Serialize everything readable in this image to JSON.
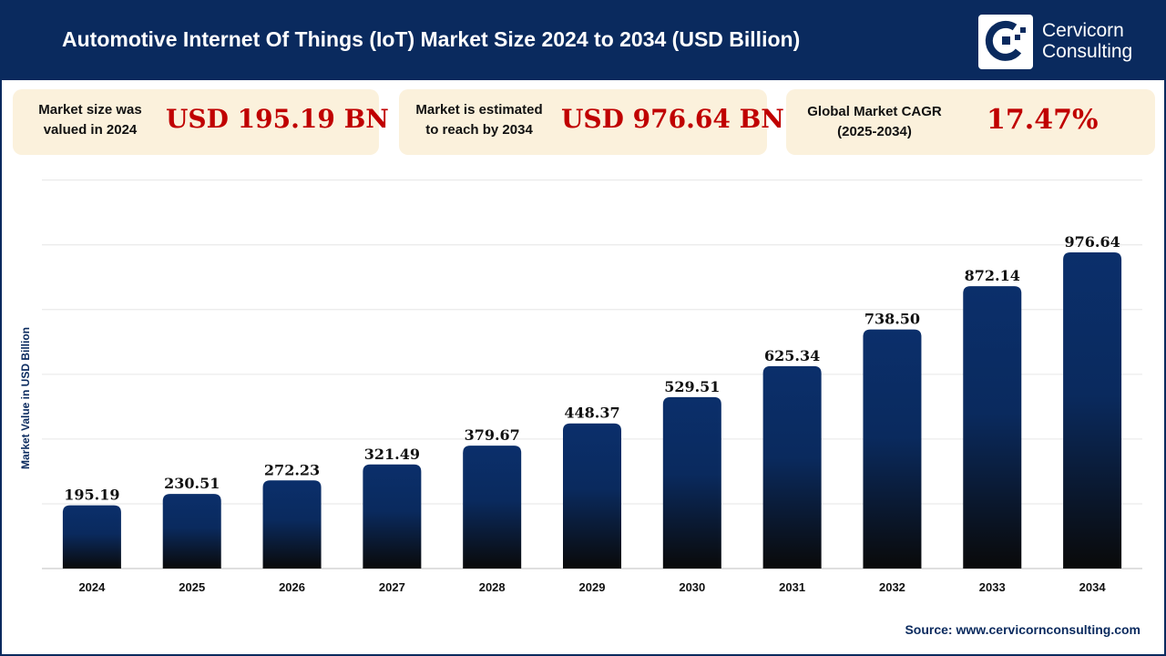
{
  "header": {
    "title": "Automotive Internet Of Things (IoT) Market Size 2024 to 2034 (USD Billion)",
    "logo_line1": "Cervicorn",
    "logo_line2": "Consulting"
  },
  "cards": [
    {
      "label_line1": "Market size was",
      "label_line2": "valued in 2024",
      "value": "USD 195.19 BN"
    },
    {
      "label_line1": "Market is estimated",
      "label_line2": "to reach by 2034",
      "value": "USD 976.64 BN"
    },
    {
      "label_line1": "Global Market CAGR",
      "label_line2": "(2025-2034)",
      "value": "17.47%"
    }
  ],
  "footer": {
    "source": "Source: www.cervicornconsulting.com"
  },
  "colors": {
    "navy": "#0a2a5e",
    "value_red": "#c00000",
    "card_bg": "#fbf1dc",
    "bar_top": "#0b2f6b",
    "bar_bottom": "#0a0a0a"
  },
  "chart_data": {
    "type": "bar",
    "categories": [
      "2024",
      "2025",
      "2026",
      "2027",
      "2028",
      "2029",
      "2030",
      "2031",
      "2032",
      "2033",
      "2034"
    ],
    "values": [
      195.19,
      230.51,
      272.23,
      321.49,
      379.67,
      448.37,
      529.51,
      625.34,
      738.5,
      872.14,
      976.64
    ],
    "data_labels": [
      "195.19",
      "230.51",
      "272.23",
      "321.49",
      "379.67",
      "448.37",
      "529.51",
      "625.34",
      "738.50",
      "872.14",
      "976.64"
    ],
    "ylabel": "Market Value in USD Billion",
    "xlabel": "",
    "ylim": [
      0,
      1200
    ],
    "grid": true,
    "gridline_step": 200
  }
}
